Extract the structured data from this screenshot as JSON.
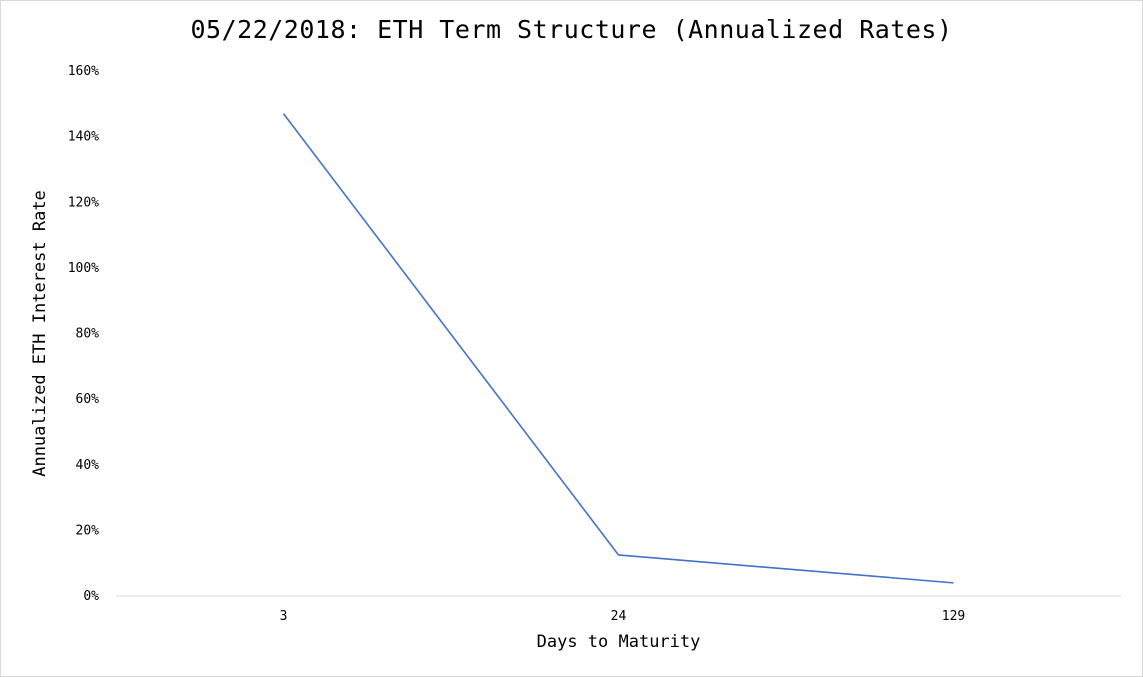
{
  "chart_data": {
    "type": "line",
    "title": "05/22/2018: ETH Term Structure (Annualized Rates)",
    "xlabel": "Days to Maturity",
    "ylabel": "Annualized ETH Interest Rate",
    "categories": [
      "3",
      "24",
      "129"
    ],
    "series": [
      {
        "values": [
          147,
          12.5,
          4
        ]
      }
    ],
    "ylim": [
      0,
      160
    ],
    "yticks": [
      "0%",
      "20%",
      "40%",
      "60%",
      "80%",
      "100%",
      "120%",
      "140%",
      "160%"
    ],
    "grid": false,
    "legend": "none",
    "line_color": "#4472c4",
    "axis_color": "#d9d9d9"
  }
}
